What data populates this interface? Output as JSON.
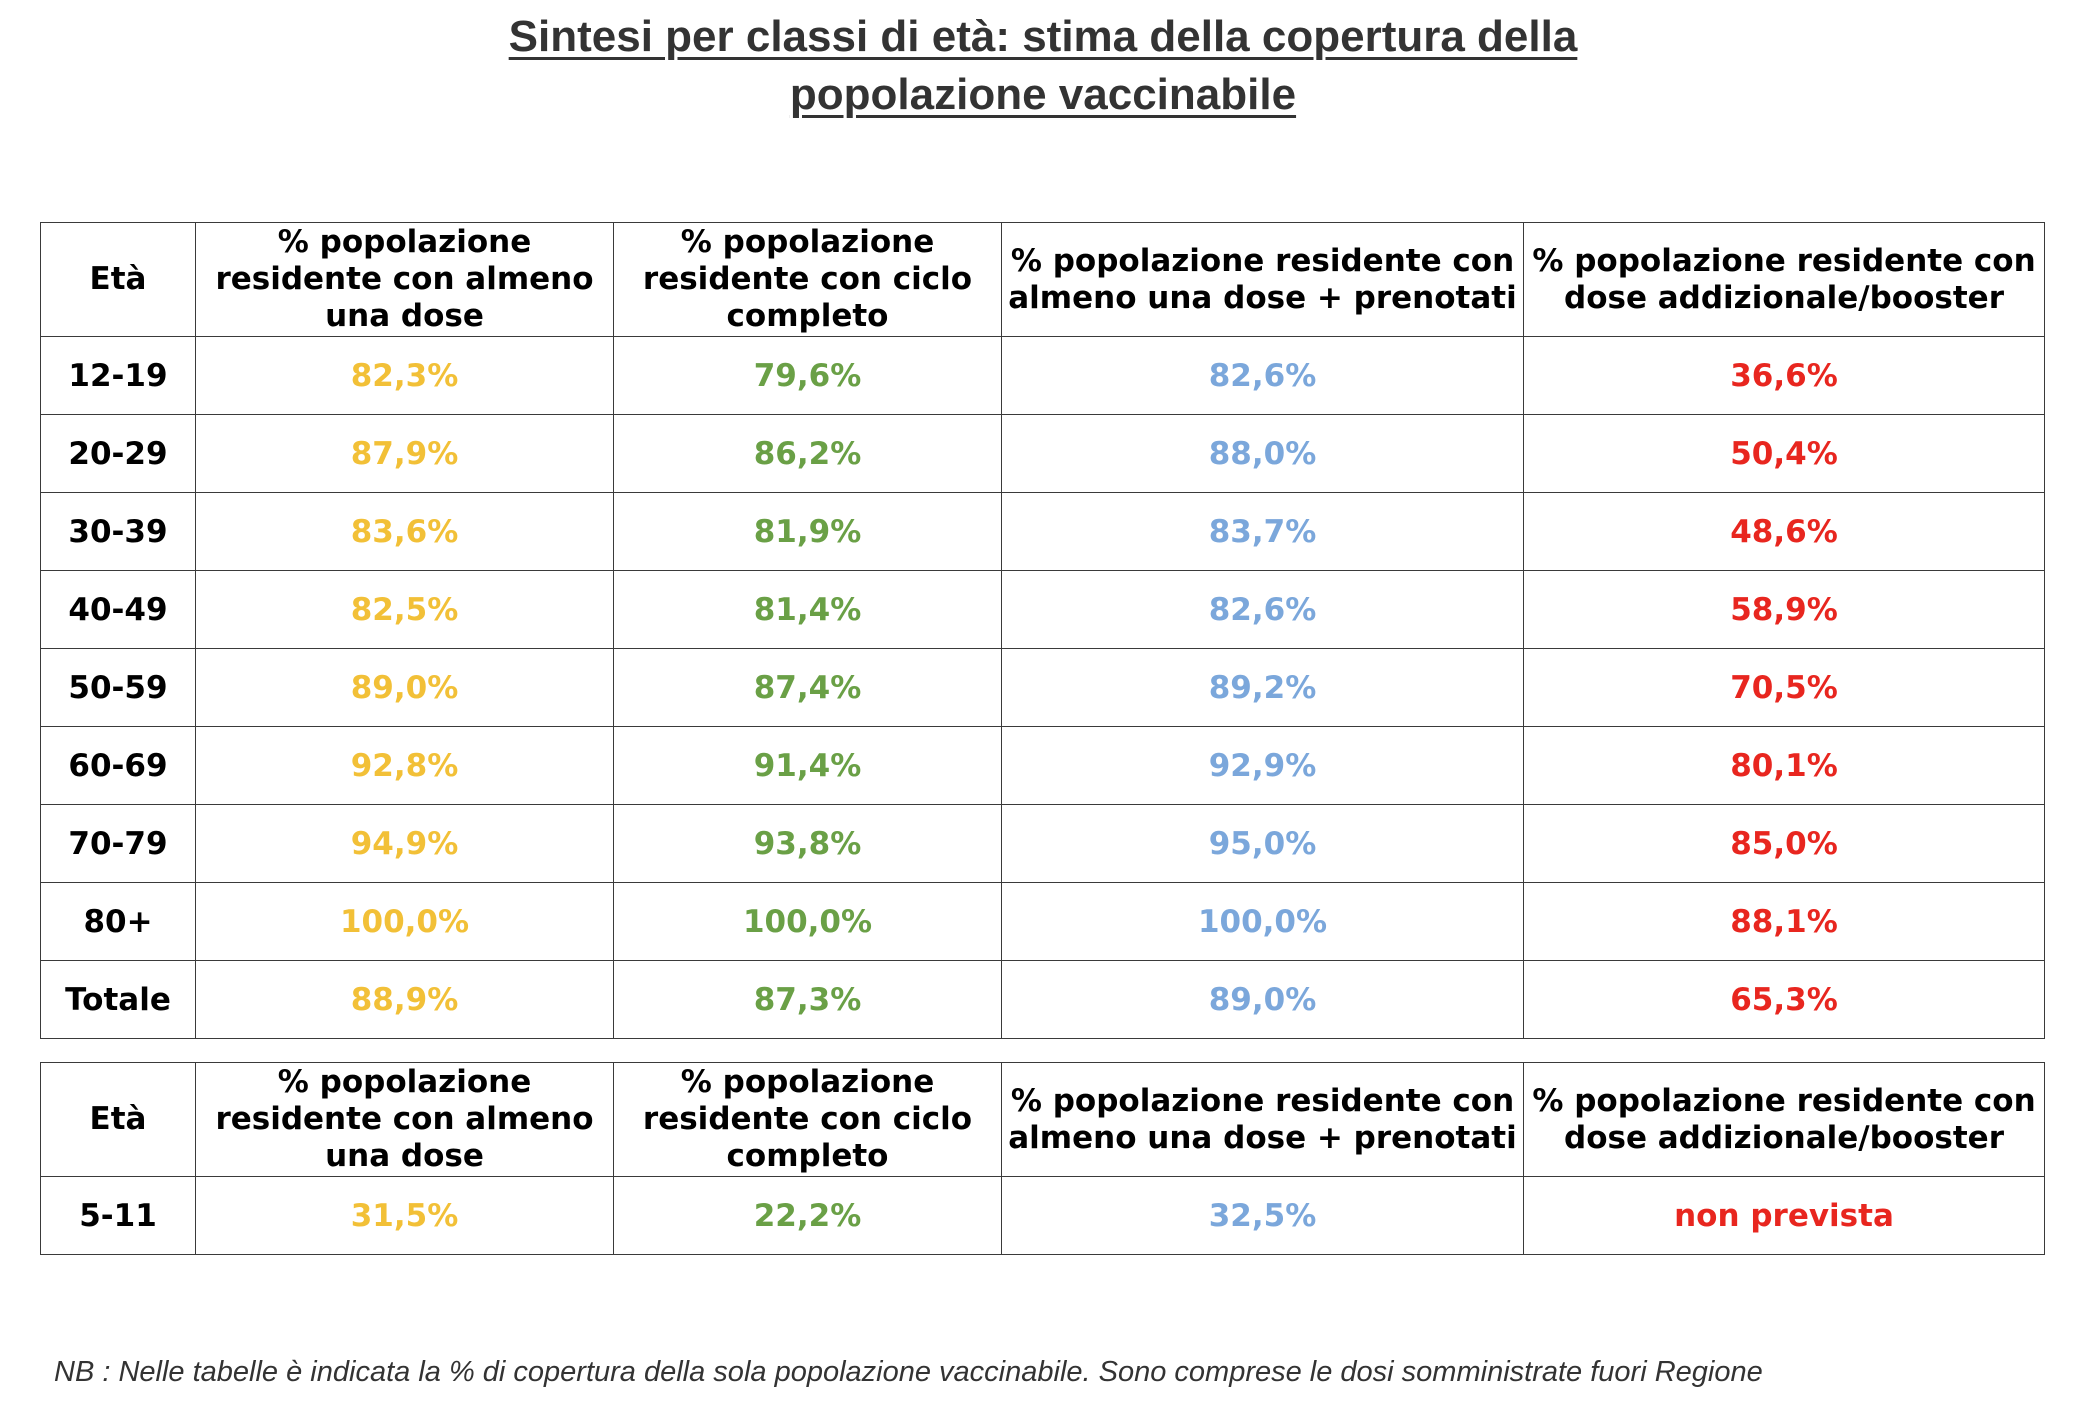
{
  "title": {
    "line1": "Sintesi per classi di età: stima della copertura della",
    "line2": "popolazione vaccinabile"
  },
  "colors": {
    "almeno_una_dose": "#F2C037",
    "ciclo_completo": "#6AA046",
    "prenotati": "#7BA7DB",
    "booster": "#E8261F"
  },
  "headers": [
    "Età",
    "% popolazione residente con almeno una dose",
    "% popolazione residente con ciclo completo",
    "% popolazione residente con almeno una dose + prenotati",
    "% popolazione residente con dose addizionale/booster"
  ],
  "table1": {
    "rows": [
      {
        "age": "12-19",
        "v1": "82,3%",
        "v2": "79,6%",
        "v3": "82,6%",
        "v4": "36,6%"
      },
      {
        "age": "20-29",
        "v1": "87,9%",
        "v2": "86,2%",
        "v3": "88,0%",
        "v4": "50,4%"
      },
      {
        "age": "30-39",
        "v1": "83,6%",
        "v2": "81,9%",
        "v3": "83,7%",
        "v4": "48,6%"
      },
      {
        "age": "40-49",
        "v1": "82,5%",
        "v2": "81,4%",
        "v3": "82,6%",
        "v4": "58,9%"
      },
      {
        "age": "50-59",
        "v1": "89,0%",
        "v2": "87,4%",
        "v3": "89,2%",
        "v4": "70,5%"
      },
      {
        "age": "60-69",
        "v1": "92,8%",
        "v2": "91,4%",
        "v3": "92,9%",
        "v4": "80,1%"
      },
      {
        "age": "70-79",
        "v1": "94,9%",
        "v2": "93,8%",
        "v3": "95,0%",
        "v4": "85,0%"
      },
      {
        "age": "80+",
        "v1": "100,0%",
        "v2": "100,0%",
        "v3": "100,0%",
        "v4": "88,1%"
      },
      {
        "age": "Totale",
        "v1": "88,9%",
        "v2": "87,3%",
        "v3": "89,0%",
        "v4": "65,3%"
      }
    ]
  },
  "table2": {
    "rows": [
      {
        "age": "5-11",
        "v1": "31,5%",
        "v2": "22,2%",
        "v3": "32,5%",
        "v4": "non prevista"
      }
    ]
  },
  "note": "NB : Nelle tabelle è indicata la % di copertura della sola popolazione vaccinabile. Sono comprese le dosi somministrate fuori Regione"
}
